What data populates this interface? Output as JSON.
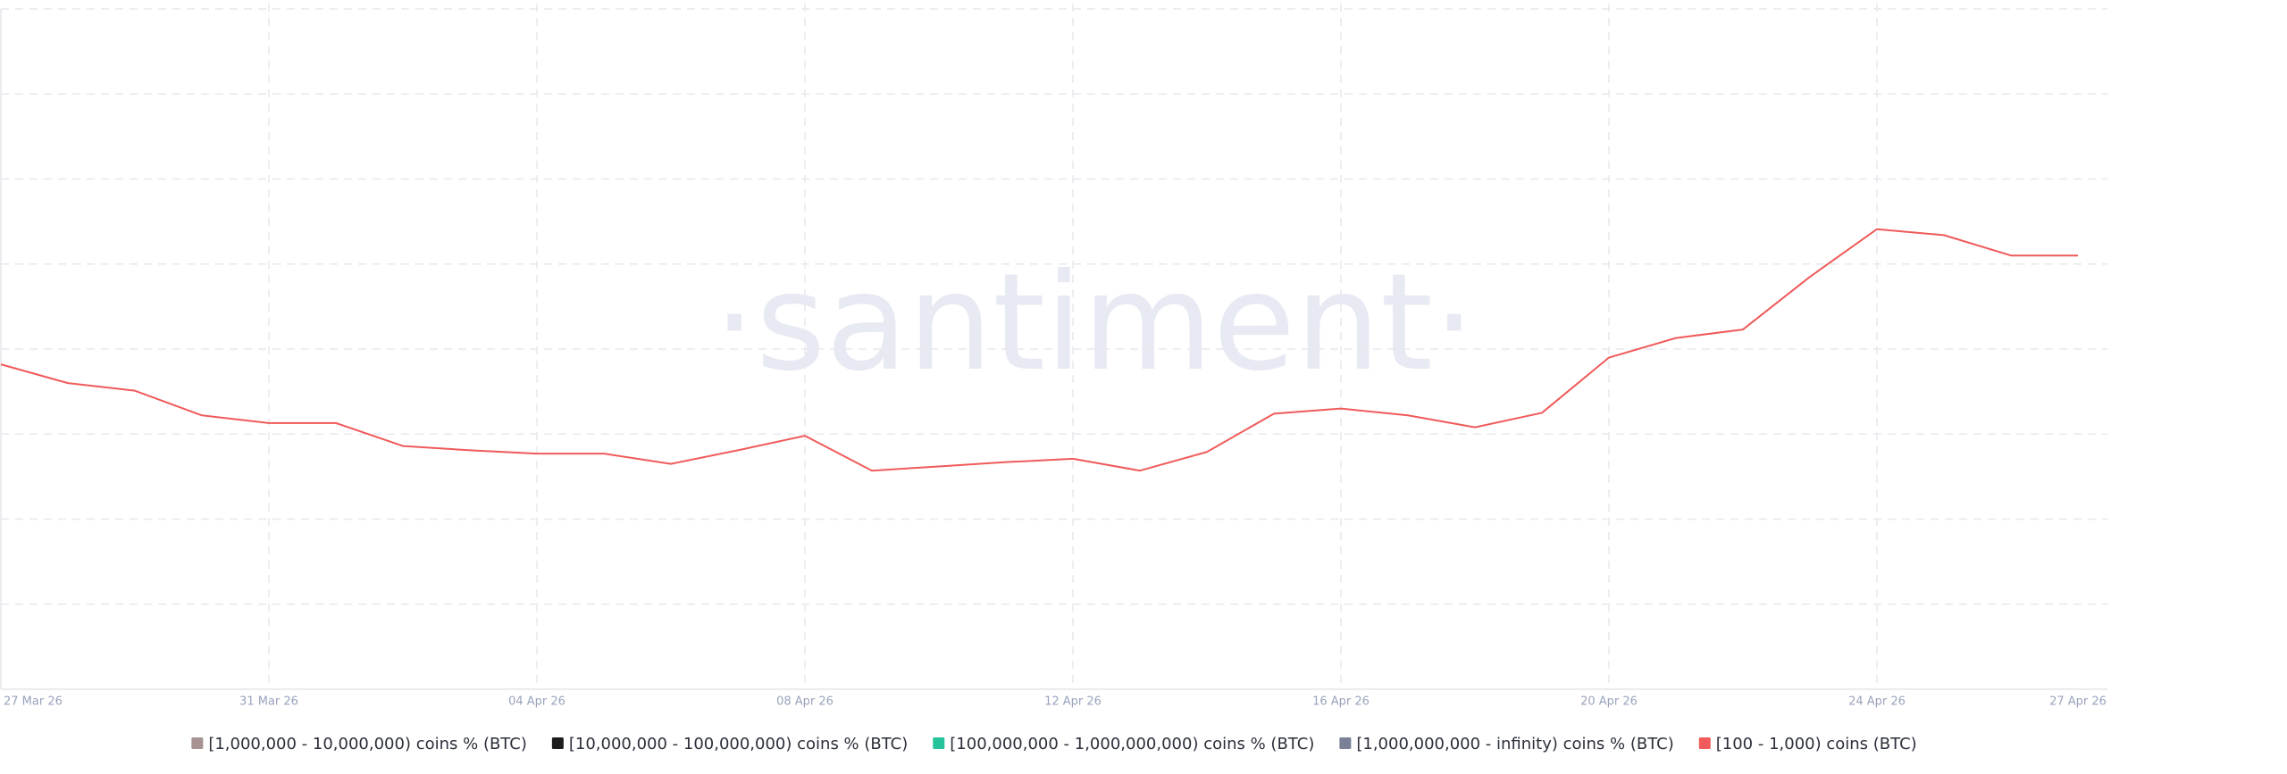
{
  "chart_data": {
    "type": "line",
    "watermark": "·santiment·",
    "x": [
      "2026-03-27",
      "2026-03-28",
      "2026-03-29",
      "2026-03-30",
      "2026-03-31",
      "2026-04-01",
      "2026-04-02",
      "2026-04-03",
      "2026-04-04",
      "2026-04-05",
      "2026-04-06",
      "2026-04-07",
      "2026-04-08",
      "2026-04-09",
      "2026-04-10",
      "2026-04-11",
      "2026-04-12",
      "2026-04-13",
      "2026-04-14",
      "2026-04-15",
      "2026-04-16",
      "2026-04-17",
      "2026-04-18",
      "2026-04-19",
      "2026-04-20",
      "2026-04-21",
      "2026-04-22",
      "2026-04-23",
      "2026-04-24",
      "2026-04-25",
      "2026-04-26",
      "2026-04-27"
    ],
    "xticks": [
      {
        "value": "2026-03-27",
        "label": "27 Mar 26"
      },
      {
        "value": "2026-03-31",
        "label": "31 Mar 26"
      },
      {
        "value": "2026-04-04",
        "label": "04 Apr 26"
      },
      {
        "value": "2026-04-08",
        "label": "08 Apr 26"
      },
      {
        "value": "2026-04-12",
        "label": "12 Apr 26"
      },
      {
        "value": "2026-04-16",
        "label": "16 Apr 26"
      },
      {
        "value": "2026-04-20",
        "label": "20 Apr 26"
      },
      {
        "value": "2026-04-24",
        "label": "24 Apr 26"
      },
      {
        "value": "2026-04-27",
        "label": "27 Apr 26"
      }
    ],
    "ylim": [
      0,
      8
    ],
    "grid": true,
    "series": [
      {
        "name": "[1,000,000 - 10,000,000) coins % (BTC)",
        "color": "#a89393",
        "values": [
          null,
          null,
          null,
          null,
          null,
          null,
          null,
          null,
          null,
          null,
          null,
          null,
          null,
          null,
          null,
          null,
          null,
          null,
          null,
          null,
          null,
          null,
          null,
          null,
          null,
          null,
          null,
          null,
          null,
          null,
          null,
          null
        ]
      },
      {
        "name": "[10,000,000 - 100,000,000) coins % (BTC)",
        "color": "#1c1c1c",
        "values": [
          null,
          null,
          null,
          null,
          null,
          null,
          null,
          null,
          null,
          null,
          null,
          null,
          null,
          null,
          null,
          null,
          null,
          null,
          null,
          null,
          null,
          null,
          null,
          null,
          null,
          null,
          null,
          null,
          null,
          null,
          null,
          null
        ]
      },
      {
        "name": "[100,000,000 - 1,000,000,000) coins % (BTC)",
        "color": "#26c29a",
        "values": [
          null,
          null,
          null,
          null,
          null,
          null,
          null,
          null,
          null,
          null,
          null,
          null,
          null,
          null,
          null,
          null,
          null,
          null,
          null,
          null,
          null,
          null,
          null,
          null,
          null,
          null,
          null,
          null,
          null,
          null,
          null,
          null
        ]
      },
      {
        "name": "[1,000,000,000 - infinity) coins % (BTC)",
        "color": "#7b8099",
        "values": [
          null,
          null,
          null,
          null,
          null,
          null,
          null,
          null,
          null,
          null,
          null,
          null,
          null,
          null,
          null,
          null,
          null,
          null,
          null,
          null,
          null,
          null,
          null,
          null,
          null,
          null,
          null,
          null,
          null,
          null,
          null,
          null
        ]
      },
      {
        "name": "[100 - 1,000) coins (BTC)",
        "color": "#f05a5a",
        "values": [
          3.82,
          3.6,
          3.51,
          3.22,
          3.13,
          3.13,
          2.86,
          2.81,
          2.77,
          2.77,
          2.65,
          2.81,
          2.98,
          2.57,
          2.62,
          2.67,
          2.71,
          2.57,
          2.79,
          3.24,
          3.3,
          3.22,
          3.08,
          3.25,
          3.9,
          4.13,
          4.23,
          4.85,
          5.41,
          5.34,
          5.1,
          5.1
        ]
      }
    ]
  }
}
